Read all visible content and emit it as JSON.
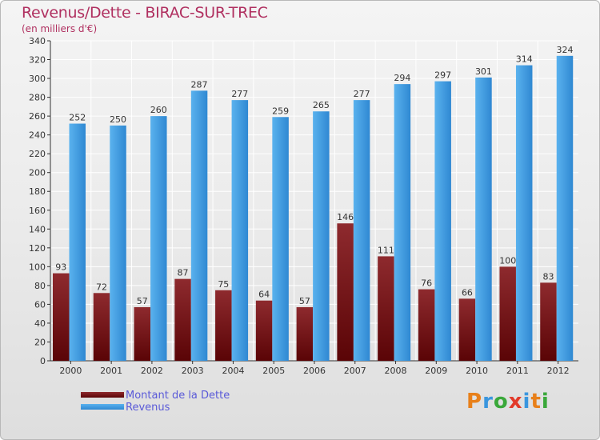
{
  "title": "Revenus/Dette - BIRAC-SUR-TREC",
  "subtitle": "(en milliers d'€)",
  "logo_text": "Proxiti",
  "colors": {
    "title": "#b03060",
    "dette": "#7a1418",
    "revenus": "#3a96de",
    "legend_text": "#5a5ad8",
    "logo": [
      "#e8801a",
      "#3a96de",
      "#3aa83a",
      "#e23a2a",
      "#3a96de",
      "#e8801a",
      "#3aa83a"
    ]
  },
  "chart_data": {
    "type": "bar",
    "title": "Revenus/Dette - BIRAC-SUR-TREC",
    "subtitle": "(en milliers d'€)",
    "xlabel": "",
    "ylabel": "",
    "categories": [
      "2000",
      "2001",
      "2002",
      "2003",
      "2004",
      "2005",
      "2006",
      "2007",
      "2008",
      "2009",
      "2010",
      "2011",
      "2012"
    ],
    "series": [
      {
        "name": "Montant de la Dette",
        "values": [
          93,
          72,
          57,
          87,
          75,
          64,
          57,
          146,
          111,
          76,
          66,
          100,
          83
        ]
      },
      {
        "name": "Revenus",
        "values": [
          252,
          250,
          260,
          287,
          277,
          259,
          265,
          277,
          294,
          297,
          301,
          314,
          324
        ]
      }
    ],
    "ylim": [
      0,
      340
    ],
    "yticks": [
      0,
      20,
      40,
      60,
      80,
      100,
      120,
      140,
      160,
      180,
      200,
      220,
      240,
      260,
      280,
      300,
      320,
      340
    ],
    "grid": true,
    "legend_position": "bottom-left"
  }
}
